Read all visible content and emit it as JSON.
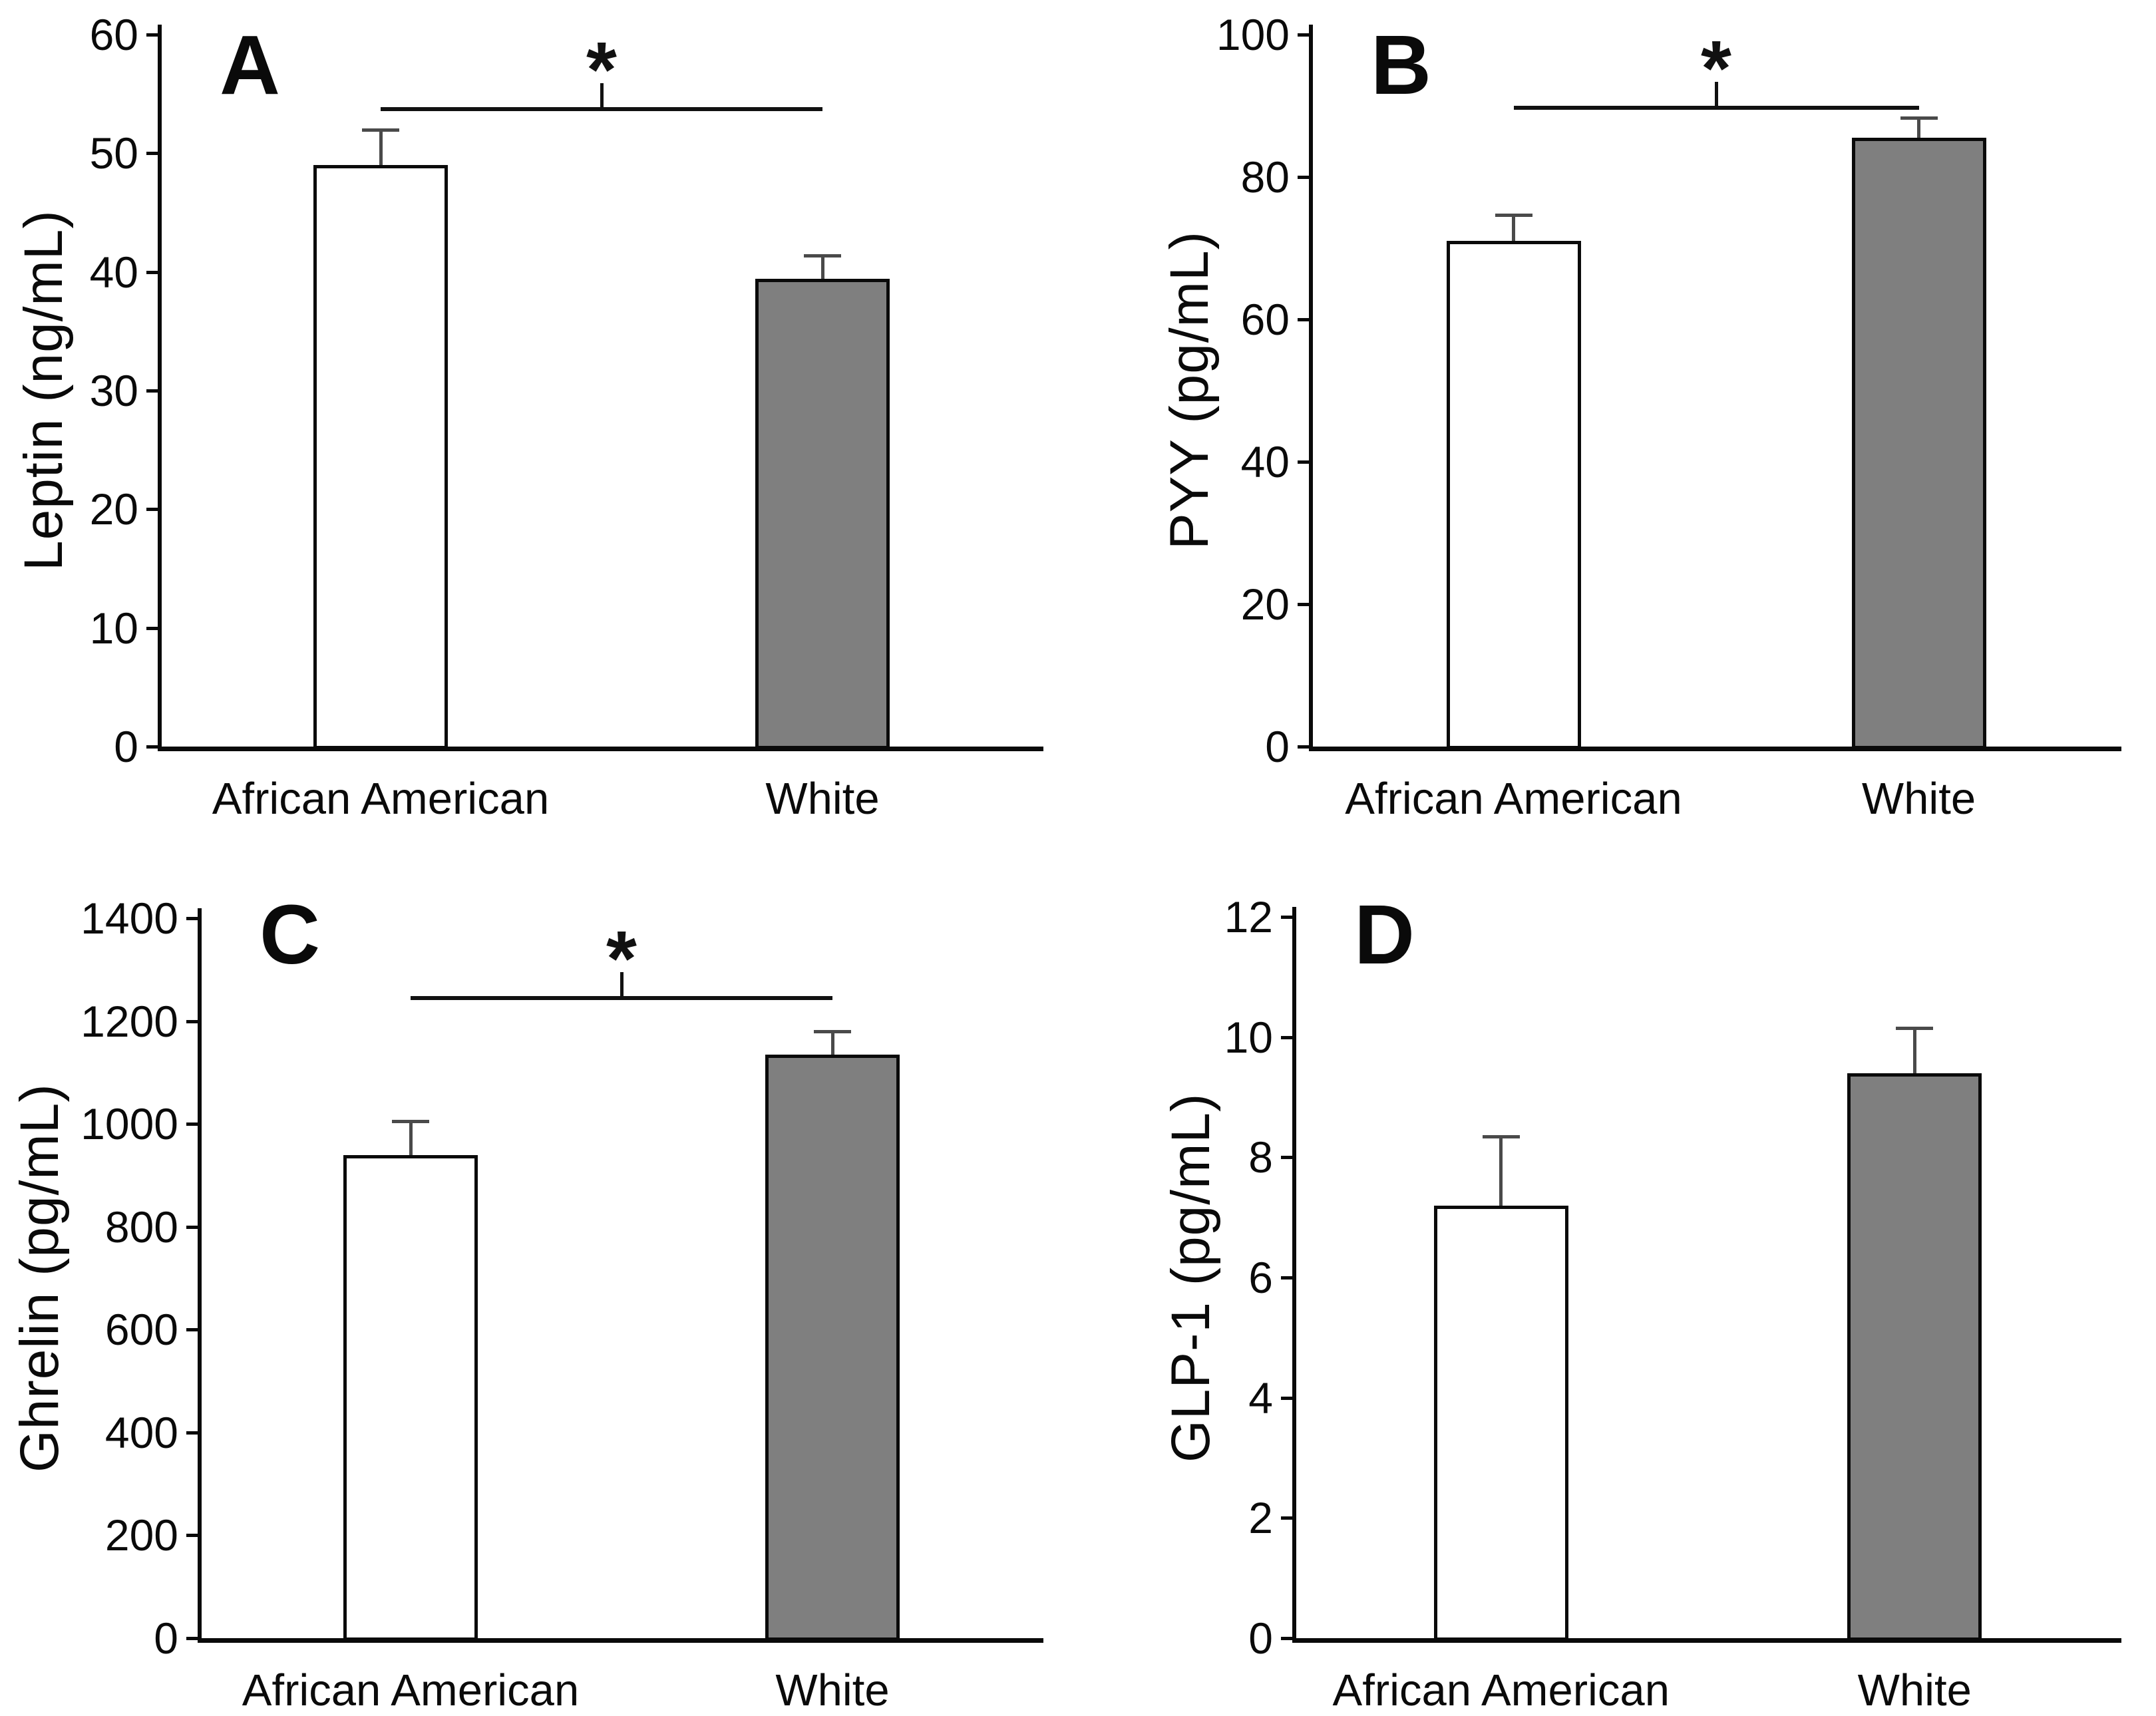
{
  "figure": {
    "description": "Four-panel bar chart comparing fasting gut hormone levels between African American and White groups",
    "groups": [
      "African American",
      "White"
    ],
    "bar_fill_colors": [
      "#ffffff",
      "#7f7f7f"
    ],
    "bar_edge_color": "#0a0a0a",
    "error_bar_color": "#4a4a4a",
    "axis_color": "#0a0a0a",
    "background_color": "#ffffff",
    "significance_symbol": "*"
  },
  "chart_data": [
    {
      "type": "bar",
      "panel_letter": "A",
      "title": "",
      "ylabel": "Leptin (ng/mL)",
      "categories": [
        "African American",
        "White"
      ],
      "values": [
        49,
        39.4
      ],
      "errors_upper": [
        3,
        2
      ],
      "ylim": [
        0,
        60
      ],
      "ytick_step": 10,
      "ytick_labels": [
        "0",
        "10",
        "20",
        "30",
        "40",
        "50",
        "60"
      ],
      "grid": "off",
      "legend": "none",
      "significance": {
        "present": true,
        "marker": "*",
        "between": [
          "African American",
          "White"
        ],
        "bracket_y": 53.7
      }
    },
    {
      "type": "bar",
      "panel_letter": "B",
      "title": "",
      "ylabel": "PYY (pg/mL)",
      "categories": [
        "African American",
        "White"
      ],
      "values": [
        71,
        85.5
      ],
      "errors_upper": [
        3.7,
        2.8
      ],
      "ylim": [
        0,
        100
      ],
      "ytick_step": 20,
      "ytick_labels": [
        "0",
        "20",
        "40",
        "60",
        "80",
        "100"
      ],
      "grid": "off",
      "legend": "none",
      "significance": {
        "present": true,
        "marker": "*",
        "between": [
          "African American",
          "White"
        ],
        "bracket_y": 89.7
      }
    },
    {
      "type": "bar",
      "panel_letter": "C",
      "title": "",
      "ylabel": "Ghrelin (pg/mL)",
      "categories": [
        "African American",
        "White"
      ],
      "values": [
        940,
        1135
      ],
      "errors_upper": [
        65,
        45
      ],
      "ylim": [
        0,
        1400
      ],
      "ytick_step": 200,
      "ytick_labels": [
        "0",
        "200",
        "400",
        "600",
        "800",
        "1000",
        "1200",
        "1400"
      ],
      "grid": "off",
      "legend": "none",
      "significance": {
        "present": true,
        "marker": "*",
        "between": [
          "African American",
          "White"
        ],
        "bracket_y": 1245
      }
    },
    {
      "type": "bar",
      "panel_letter": "D",
      "title": "",
      "ylabel": "GLP-1 (pg/mL)",
      "categories": [
        "African American",
        "White"
      ],
      "values": [
        7.2,
        9.4
      ],
      "errors_upper": [
        1.15,
        0.75
      ],
      "ylim": [
        0,
        12
      ],
      "ytick_step": 2,
      "ytick_labels": [
        "0",
        "2",
        "4",
        "6",
        "8",
        "10",
        "12"
      ],
      "grid": "off",
      "legend": "none",
      "significance": {
        "present": false,
        "marker": "",
        "between": [],
        "bracket_y": null
      }
    }
  ]
}
